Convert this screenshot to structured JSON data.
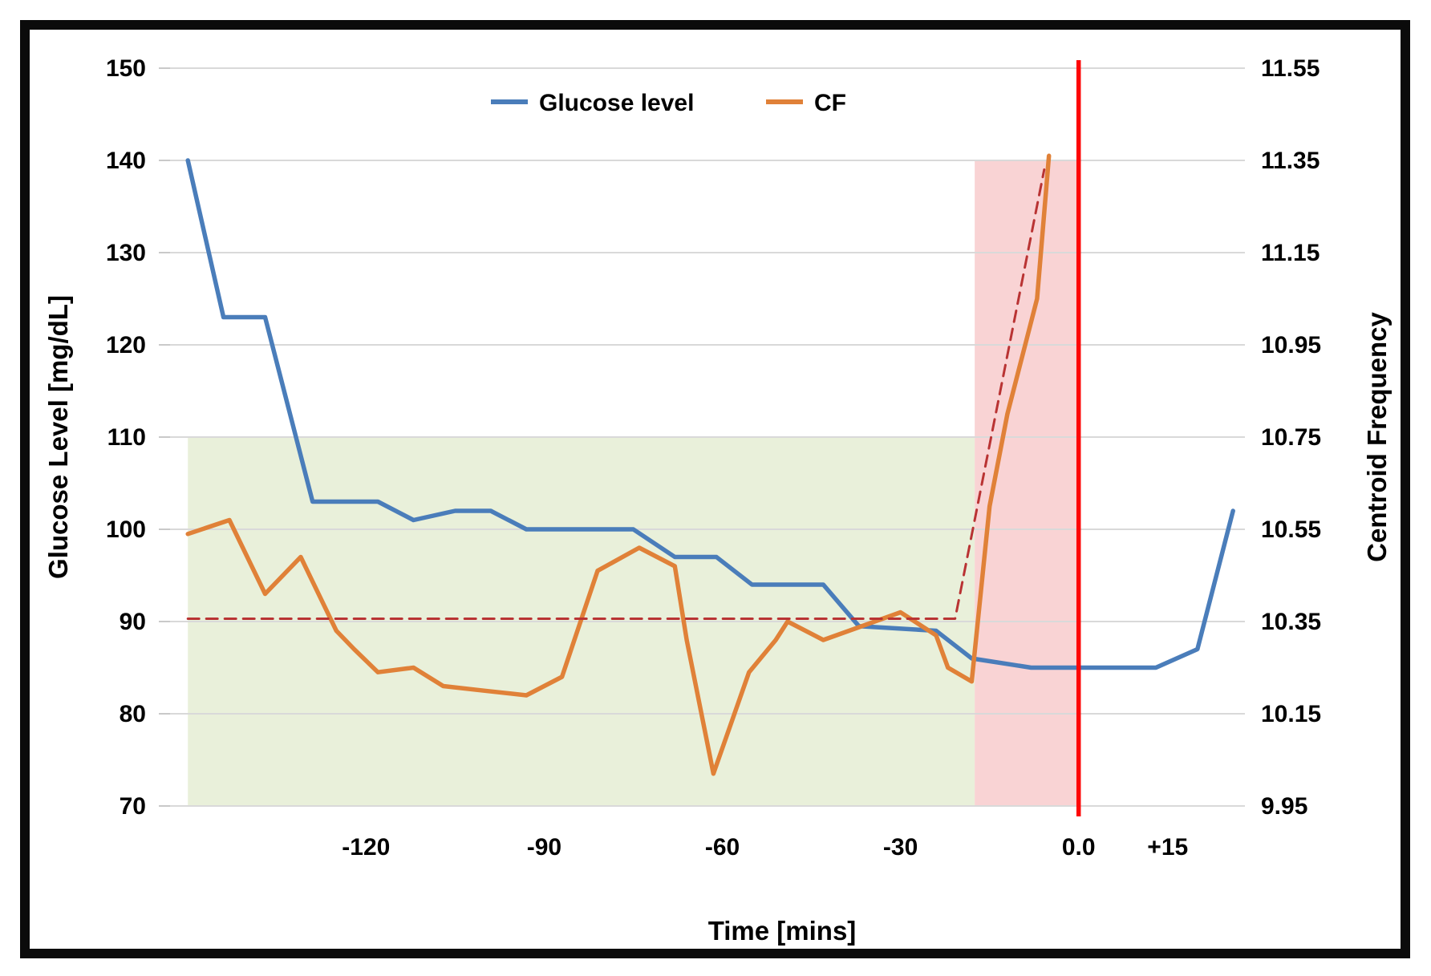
{
  "figure": {
    "background": "#ffffff",
    "frame_color": "#0b0b0b"
  },
  "chart_data": {
    "type": "line",
    "title": "",
    "x_axis": {
      "label": "Time [mins]",
      "range": [
        -153,
        28
      ],
      "ticks": [
        {
          "t": -120,
          "label": "-120"
        },
        {
          "t": -90,
          "label": "-90"
        },
        {
          "t": -60,
          "label": "-60"
        },
        {
          "t": -30,
          "label": "-30"
        },
        {
          "t": 0,
          "label": "0.0"
        },
        {
          "t": 15,
          "label": "+15"
        }
      ]
    },
    "left_axis": {
      "label": "Glucose Level [mg/dL]",
      "range": [
        70,
        150
      ],
      "tick_step": 10,
      "ticks": [
        "150",
        "140",
        "130",
        "120",
        "110",
        "100",
        "90",
        "80",
        "70"
      ]
    },
    "right_axis": {
      "label": "Centroid Frequency",
      "range": [
        9.95,
        11.55
      ],
      "tick_step": 0.2,
      "ticks": [
        "11.55",
        "11.35",
        "11.15",
        "10.95",
        "10.75",
        "10.55",
        "10.35",
        "10.15",
        "9.95"
      ]
    },
    "grid": true,
    "gridline_color": "#d9d9d9",
    "legend": {
      "position": "top",
      "items": [
        {
          "label": "Glucose level",
          "series": "glucose"
        },
        {
          "label": "CF",
          "series": "cf"
        }
      ]
    },
    "regions": [
      {
        "name": "baseline-window-green",
        "color": "#e9f0da",
        "t0": -150,
        "t1": -17.5,
        "v0": 70,
        "v1": 110,
        "axis": "left"
      },
      {
        "name": "pre-event-window-pink",
        "color": "#f9d3d4",
        "t0": -17.5,
        "t1": -0.2,
        "v0": 70,
        "v1": 140,
        "axis": "left"
      }
    ],
    "event_line": {
      "t": 0,
      "color": "#fe0505",
      "width": 5.5
    },
    "series": [
      {
        "id": "glucose",
        "name": "Glucose level",
        "axis": "left",
        "color": "#4a7dba",
        "width": 5.5,
        "points": [
          [
            -150,
            140
          ],
          [
            -144,
            123
          ],
          [
            -137,
            123
          ],
          [
            -133,
            113
          ],
          [
            -129,
            103
          ],
          [
            -118,
            103
          ],
          [
            -112,
            101
          ],
          [
            -105,
            102
          ],
          [
            -99,
            102
          ],
          [
            -93,
            100
          ],
          [
            -75,
            100
          ],
          [
            -68,
            97
          ],
          [
            -61,
            97
          ],
          [
            -55,
            94
          ],
          [
            -43,
            94
          ],
          [
            -37,
            89.5
          ],
          [
            -24,
            89
          ],
          [
            -18,
            86
          ],
          [
            -8,
            85
          ],
          [
            13,
            85
          ],
          [
            20,
            87
          ],
          [
            26,
            102
          ]
        ]
      },
      {
        "id": "cf",
        "name": "CF",
        "axis": "right",
        "color": "#e08138",
        "width": 5.5,
        "points": [
          [
            -150,
            10.54
          ],
          [
            -143,
            10.57
          ],
          [
            -137,
            10.41
          ],
          [
            -131,
            10.49
          ],
          [
            -125,
            10.33
          ],
          [
            -122,
            10.29
          ],
          [
            -118,
            10.24
          ],
          [
            -112,
            10.25
          ],
          [
            -107,
            10.21
          ],
          [
            -100,
            10.2
          ],
          [
            -93,
            10.19
          ],
          [
            -87,
            10.23
          ],
          [
            -81,
            10.46
          ],
          [
            -74,
            10.51
          ],
          [
            -68,
            10.47
          ],
          [
            -66,
            10.31
          ],
          [
            -61.5,
            10.02
          ],
          [
            -55.5,
            10.24
          ],
          [
            -51,
            10.31
          ],
          [
            -49,
            10.35
          ],
          [
            -43,
            10.31
          ],
          [
            -30,
            10.37
          ],
          [
            -24,
            10.32
          ],
          [
            -22,
            10.25
          ],
          [
            -18,
            10.22
          ],
          [
            -15,
            10.6
          ],
          [
            -12,
            10.8
          ],
          [
            -9,
            10.95
          ],
          [
            -7,
            11.05
          ],
          [
            -5,
            11.36
          ]
        ]
      },
      {
        "id": "cf-baseline",
        "name": "CF baseline (dashed)",
        "axis": "right",
        "color": "#b93333",
        "width": 3,
        "dash": "14 9",
        "points": [
          [
            -150,
            10.356
          ],
          [
            -20.8,
            10.356
          ],
          [
            -5.8,
            11.33
          ]
        ]
      }
    ]
  }
}
